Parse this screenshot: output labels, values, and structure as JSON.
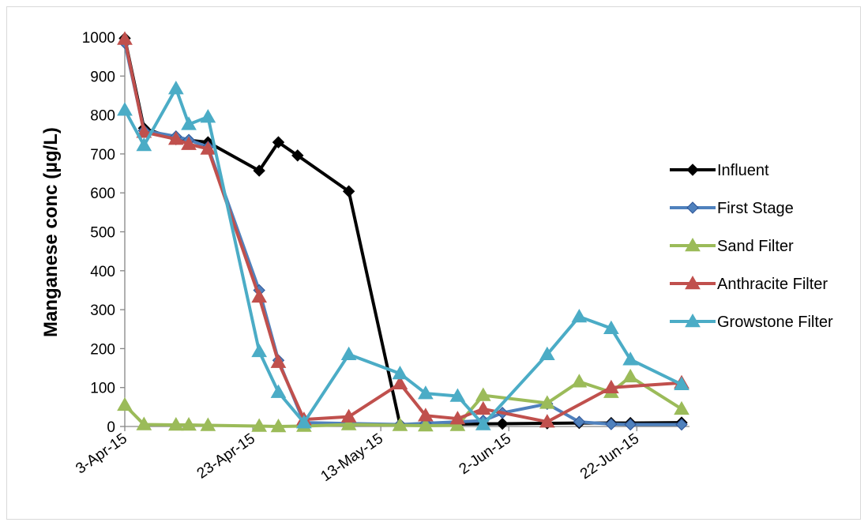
{
  "chart_data": {
    "type": "line",
    "title": "",
    "xlabel": "",
    "ylabel": "Manganese conc (µg/L)",
    "ylim": [
      0,
      1000
    ],
    "yticks": [
      "0",
      "100",
      "200",
      "300",
      "400",
      "500",
      "600",
      "700",
      "800",
      "900",
      "1000"
    ],
    "xlim": [
      "2015-04-03",
      "2015-06-29"
    ],
    "xticks": [
      {
        "date": "2015-04-03",
        "label": "3-Apr-15"
      },
      {
        "date": "2015-04-23",
        "label": "23-Apr-15"
      },
      {
        "date": "2015-05-13",
        "label": "13-May-15"
      },
      {
        "date": "2015-06-02",
        "label": "2-Jun-15"
      },
      {
        "date": "2015-06-22",
        "label": "22-Jun-15"
      }
    ],
    "grid": false,
    "legend_position": "right",
    "series": [
      {
        "name": "Influent",
        "color": "#000000",
        "marker": "diamond",
        "points": [
          [
            "2015-04-03",
            997
          ],
          [
            "2015-04-06",
            766
          ],
          [
            "2015-04-11",
            738
          ],
          [
            "2015-04-13",
            735
          ],
          [
            "2015-04-16",
            730
          ],
          [
            "2015-04-24",
            657
          ],
          [
            "2015-04-27",
            730
          ],
          [
            "2015-04-30",
            696
          ],
          [
            "2015-05-08",
            604
          ],
          [
            "2015-05-16",
            5
          ],
          [
            "2015-06-01",
            7
          ],
          [
            "2015-06-08",
            8
          ],
          [
            "2015-06-13",
            9
          ],
          [
            "2015-06-18",
            9
          ],
          [
            "2015-06-21",
            9
          ],
          [
            "2015-06-29",
            10
          ]
        ]
      },
      {
        "name": "First Stage",
        "color": "#4f81bd",
        "marker": "diamond",
        "points": [
          [
            "2015-04-03",
            985
          ],
          [
            "2015-04-06",
            760
          ],
          [
            "2015-04-11",
            745
          ],
          [
            "2015-04-13",
            736
          ],
          [
            "2015-04-16",
            718
          ],
          [
            "2015-04-24",
            350
          ],
          [
            "2015-04-27",
            170
          ],
          [
            "2015-05-01",
            10
          ],
          [
            "2015-05-16",
            5
          ],
          [
            "2015-05-20",
            8
          ],
          [
            "2015-05-25",
            12
          ],
          [
            "2015-05-29",
            15
          ],
          [
            "2015-06-01",
            35
          ],
          [
            "2015-06-08",
            58
          ],
          [
            "2015-06-13",
            12
          ],
          [
            "2015-06-18",
            6
          ],
          [
            "2015-06-21",
            5
          ],
          [
            "2015-06-29",
            5
          ]
        ]
      },
      {
        "name": "Sand Filter",
        "color": "#9bbb59",
        "marker": "triangle",
        "points": [
          [
            "2015-04-03",
            55
          ],
          [
            "2015-04-06",
            5
          ],
          [
            "2015-04-11",
            4
          ],
          [
            "2015-04-13",
            4
          ],
          [
            "2015-04-16",
            3
          ],
          [
            "2015-04-24",
            1
          ],
          [
            "2015-04-27",
            0
          ],
          [
            "2015-05-01",
            1
          ],
          [
            "2015-05-08",
            5
          ],
          [
            "2015-05-16",
            3
          ],
          [
            "2015-05-20",
            2
          ],
          [
            "2015-05-25",
            3
          ],
          [
            "2015-05-29",
            80
          ],
          [
            "2015-06-08",
            60
          ],
          [
            "2015-06-13",
            115
          ],
          [
            "2015-06-18",
            88
          ],
          [
            "2015-06-21",
            128
          ],
          [
            "2015-06-29",
            45
          ]
        ]
      },
      {
        "name": "Anthracite Filter",
        "color": "#c0504d",
        "marker": "triangle",
        "points": [
          [
            "2015-04-03",
            995
          ],
          [
            "2015-04-06",
            756
          ],
          [
            "2015-04-11",
            738
          ],
          [
            "2015-04-13",
            725
          ],
          [
            "2015-04-16",
            713
          ],
          [
            "2015-04-24",
            333
          ],
          [
            "2015-04-27",
            165
          ],
          [
            "2015-05-01",
            18
          ],
          [
            "2015-05-08",
            25
          ],
          [
            "2015-05-16",
            110
          ],
          [
            "2015-05-20",
            28
          ],
          [
            "2015-05-25",
            20
          ],
          [
            "2015-05-29",
            45
          ],
          [
            "2015-06-08",
            12
          ],
          [
            "2015-06-18",
            100
          ],
          [
            "2015-06-29",
            112
          ]
        ]
      },
      {
        "name": "Growstone Filter",
        "color": "#4bacc6",
        "marker": "triangle",
        "points": [
          [
            "2015-04-03",
            813
          ],
          [
            "2015-04-06",
            722
          ],
          [
            "2015-04-11",
            868
          ],
          [
            "2015-04-13",
            776
          ],
          [
            "2015-04-16",
            795
          ],
          [
            "2015-04-24",
            193
          ],
          [
            "2015-04-27",
            88
          ],
          [
            "2015-05-01",
            10
          ],
          [
            "2015-05-08",
            185
          ],
          [
            "2015-05-16",
            136
          ],
          [
            "2015-05-20",
            85
          ],
          [
            "2015-05-25",
            78
          ],
          [
            "2015-05-29",
            5
          ],
          [
            "2015-06-08",
            185
          ],
          [
            "2015-06-13",
            282
          ],
          [
            "2015-06-18",
            252
          ],
          [
            "2015-06-21",
            172
          ],
          [
            "2015-06-29",
            108
          ]
        ]
      }
    ]
  }
}
